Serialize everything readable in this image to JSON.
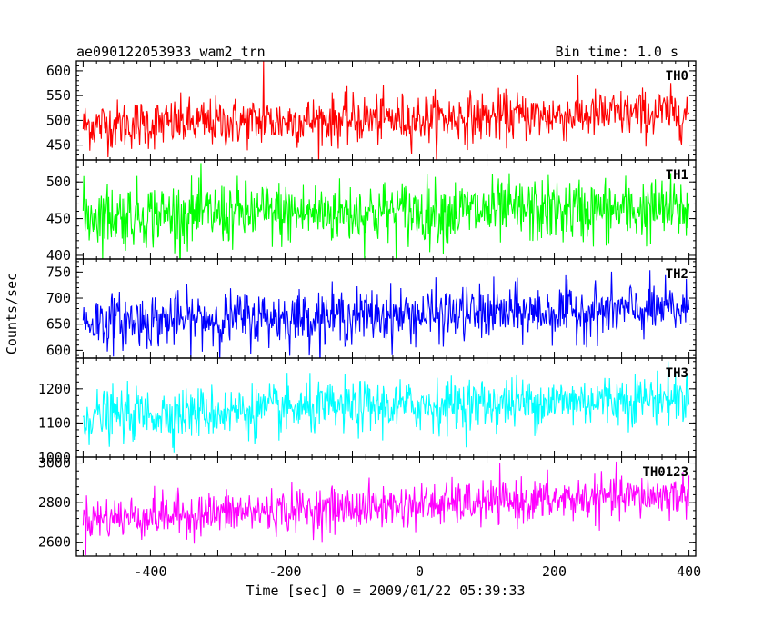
{
  "header": {
    "title": "ae090122053933_wam2_trn",
    "bin_time": "Bin time: 1.0 s"
  },
  "chart_data": {
    "type": "line",
    "xlabel": "Time [sec] 0 = 2009/01/22 05:39:33",
    "ylabel": "Counts/sec",
    "xlim": [
      -510,
      410
    ],
    "xticks": [
      -400,
      -200,
      0,
      200,
      400
    ],
    "x_start": -500,
    "x_end": 400,
    "step": 1.0,
    "panels": [
      {
        "name": "TH0",
        "color": "#ff0000",
        "ylim": [
          420,
          620
        ],
        "yticks": [
          450,
          500,
          550,
          600
        ],
        "start_level": 490,
        "end_level": 515,
        "noise_sd": 25,
        "spike": {
          "x": -232,
          "value": 620
        }
      },
      {
        "name": "TH1",
        "color": "#00ff00",
        "ylim": [
          395,
          530
        ],
        "yticks": [
          400,
          450,
          500
        ],
        "start_level": 455,
        "end_level": 462,
        "noise_sd": 22
      },
      {
        "name": "TH2",
        "color": "#0000ff",
        "ylim": [
          585,
          775
        ],
        "yticks": [
          600,
          650,
          700,
          750
        ],
        "start_level": 655,
        "end_level": 678,
        "noise_sd": 26
      },
      {
        "name": "TH3",
        "color": "#00ffff",
        "ylim": [
          1000,
          1290
        ],
        "yticks": [
          1000,
          1100,
          1200
        ],
        "start_level": 1120,
        "end_level": 1175,
        "noise_sd": 38
      },
      {
        "name": "TH0123",
        "color": "#ff00ff",
        "ylim": [
          2530,
          3030
        ],
        "yticks": [
          2600,
          2800,
          3000
        ],
        "start_level": 2720,
        "end_level": 2840,
        "noise_sd": 55
      }
    ]
  }
}
